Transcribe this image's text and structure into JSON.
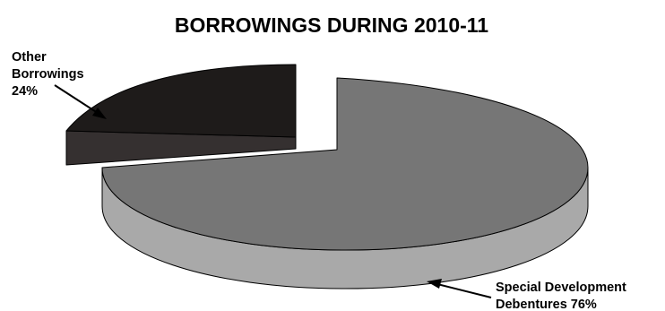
{
  "chart_data": {
    "type": "pie",
    "title": "BORROWINGS DURING 2010-11",
    "three_d": true,
    "exploded_slice": "Other Borrowings",
    "slices": [
      {
        "name": "Special Development Debentures",
        "value": 76,
        "label_lines": [
          "Special Development",
          "Debentures 76%"
        ],
        "top_color": "#767676",
        "side_color": "#a9a9a9"
      },
      {
        "name": "Other Borrowings",
        "value": 24,
        "label_lines": [
          "Other",
          "Borrowings",
          "24%"
        ],
        "top_color": "#1e1b1a",
        "side_color": "#353030"
      }
    ]
  }
}
